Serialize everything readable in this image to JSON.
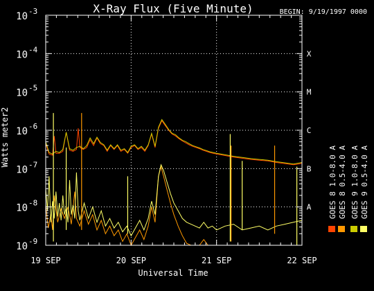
{
  "chart_data": {
    "type": "line",
    "title": "X-Ray Flux (Five Minute)",
    "begin_label": "BEGIN: 9/19/1997 0000",
    "xlabel": "Universal Time",
    "ylabel": "Watts meter2",
    "y_scale": "log",
    "ylim_exponent": [
      -9,
      -3
    ],
    "y_ticks": [
      {
        "base": "10",
        "exp": "-3"
      },
      {
        "base": "10",
        "exp": "-4"
      },
      {
        "base": "10",
        "exp": "-5"
      },
      {
        "base": "10",
        "exp": "-6"
      },
      {
        "base": "10",
        "exp": "-7"
      },
      {
        "base": "10",
        "exp": "-8"
      },
      {
        "base": "10",
        "exp": "-9"
      }
    ],
    "flare_classes": [
      {
        "label": "X",
        "exp": -4
      },
      {
        "label": "M",
        "exp": -5
      },
      {
        "label": "C",
        "exp": -6
      },
      {
        "label": "B",
        "exp": -7
      },
      {
        "label": "A",
        "exp": -8
      }
    ],
    "x_days": [
      0,
      1,
      2,
      3
    ],
    "x_tick_labels": [
      "19 SEP",
      "20 SEP",
      "21 SEP",
      "22 SEP"
    ],
    "grid": true,
    "legend": [
      {
        "label": "GOES 8 1.0-8.0 A",
        "color": "#ff4400"
      },
      {
        "label": "GOES 8 0.5-4.0 A",
        "color": "#ff9900"
      },
      {
        "label": "GOES 9 1.0-8.0 A",
        "color": "#cccc00"
      },
      {
        "label": "GOES 9 0.5-4.0 A",
        "color": "#ffff66"
      }
    ],
    "series": [
      {
        "color": "#ff4400",
        "x": [
          0.0,
          0.04,
          0.08,
          0.1,
          0.12,
          0.16,
          0.2,
          0.24,
          0.28,
          0.32,
          0.36,
          0.38,
          0.4,
          0.44,
          0.48,
          0.52,
          0.56,
          0.6,
          0.64,
          0.68,
          0.72,
          0.76,
          0.8,
          0.84,
          0.88,
          0.92,
          0.96,
          1.0,
          1.04,
          1.08,
          1.12,
          1.16,
          1.2,
          1.24,
          1.28,
          1.32,
          1.36,
          1.4,
          1.44,
          1.48,
          1.52,
          1.56,
          1.6,
          1.64,
          1.68,
          1.72,
          1.76,
          1.8,
          1.84,
          1.88,
          1.92,
          1.96,
          2.0,
          2.1,
          2.2,
          2.3,
          2.4,
          2.5,
          2.6,
          2.7,
          2.8,
          2.9,
          2.96,
          3.0
        ],
        "y": [
          -6.35,
          -6.62,
          -6.65,
          -6.15,
          -6.6,
          -6.6,
          -6.55,
          -6.05,
          -6.52,
          -6.55,
          -6.5,
          -5.95,
          -6.45,
          -6.5,
          -6.45,
          -6.25,
          -6.4,
          -6.2,
          -6.35,
          -6.4,
          -6.55,
          -6.4,
          -6.5,
          -6.4,
          -6.55,
          -6.5,
          -6.6,
          -6.45,
          -6.4,
          -6.5,
          -6.45,
          -6.55,
          -6.4,
          -6.1,
          -6.45,
          -5.95,
          -5.75,
          -5.88,
          -6.0,
          -6.1,
          -6.15,
          -6.22,
          -6.28,
          -6.33,
          -6.38,
          -6.42,
          -6.45,
          -6.48,
          -6.52,
          -6.55,
          -6.58,
          -6.6,
          -6.62,
          -6.66,
          -6.7,
          -6.73,
          -6.76,
          -6.78,
          -6.8,
          -6.84,
          -6.87,
          -6.9,
          -6.88,
          -6.86
        ]
      },
      {
        "color": "#ff9900",
        "x": [
          0.0,
          0.03,
          0.06,
          0.08,
          0.1,
          0.14,
          0.18,
          0.22,
          0.26,
          0.3,
          0.34,
          0.36,
          0.4,
          0.45,
          0.5,
          0.55,
          0.6,
          0.65,
          0.7,
          0.75,
          0.8,
          0.85,
          0.9,
          0.95,
          1.0,
          1.05,
          1.1,
          1.15,
          1.2,
          1.24,
          1.28,
          1.32,
          1.35,
          1.38,
          1.42,
          1.46,
          1.5,
          1.55,
          1.6,
          1.65,
          1.7,
          1.75,
          1.8,
          1.85,
          1.9,
          1.95,
          2.0,
          2.1,
          2.2,
          2.3,
          2.4,
          2.5,
          2.6,
          2.7,
          2.8,
          2.9,
          3.0
        ],
        "y": [
          -7.95,
          -8.55,
          -8.2,
          -8.6,
          -7.7,
          -8.4,
          -8.05,
          -8.3,
          -8.0,
          -8.45,
          -7.6,
          -8.3,
          -8.5,
          -8.1,
          -8.45,
          -8.2,
          -8.6,
          -8.35,
          -8.7,
          -8.5,
          -8.75,
          -8.6,
          -8.9,
          -8.7,
          -9.0,
          -8.8,
          -8.6,
          -8.85,
          -8.5,
          -8.0,
          -8.4,
          -7.2,
          -6.95,
          -7.2,
          -7.55,
          -7.9,
          -8.2,
          -8.5,
          -8.75,
          -8.95,
          -9.0,
          -9.0,
          -9.0,
          -8.85,
          -9.0,
          -9.0,
          -9.0,
          -9.0,
          -9.0,
          -9.0,
          -9.0,
          -9.0,
          -9.0,
          -9.0,
          -9.0,
          -9.0,
          -9.0
        ]
      },
      {
        "color": "#cccc00",
        "x": [
          0.0,
          0.04,
          0.08,
          0.12,
          0.16,
          0.2,
          0.24,
          0.28,
          0.32,
          0.36,
          0.4,
          0.44,
          0.48,
          0.52,
          0.56,
          0.6,
          0.64,
          0.68,
          0.72,
          0.76,
          0.8,
          0.84,
          0.88,
          0.92,
          0.96,
          1.0,
          1.04,
          1.08,
          1.12,
          1.16,
          1.2,
          1.24,
          1.28,
          1.32,
          1.36,
          1.4,
          1.44,
          1.48,
          1.52,
          1.56,
          1.6,
          1.64,
          1.68,
          1.72,
          1.76,
          1.8,
          1.84,
          1.88,
          1.92,
          1.96,
          2.0,
          2.1,
          2.2,
          2.3,
          2.4,
          2.5,
          2.6,
          2.7,
          2.8,
          2.9,
          3.0
        ],
        "y": [
          -6.3,
          -6.58,
          -6.62,
          -6.55,
          -6.58,
          -6.5,
          -6.05,
          -6.48,
          -6.52,
          -6.45,
          -6.42,
          -6.48,
          -6.4,
          -6.2,
          -6.35,
          -6.18,
          -6.32,
          -6.38,
          -6.52,
          -6.38,
          -6.48,
          -6.38,
          -6.52,
          -6.48,
          -6.58,
          -6.42,
          -6.38,
          -6.48,
          -6.42,
          -6.52,
          -6.38,
          -6.08,
          -6.42,
          -5.92,
          -5.72,
          -5.85,
          -5.98,
          -6.08,
          -6.12,
          -6.2,
          -6.26,
          -6.3,
          -6.35,
          -6.4,
          -6.43,
          -6.46,
          -6.5,
          -6.53,
          -6.56,
          -6.58,
          -6.6,
          -6.64,
          -6.68,
          -6.71,
          -6.74,
          -6.76,
          -6.78,
          -6.82,
          -6.85,
          -6.88,
          -6.84
        ]
      },
      {
        "color": "#ffff66",
        "x": [
          0.0,
          0.02,
          0.04,
          0.06,
          0.08,
          0.1,
          0.12,
          0.14,
          0.16,
          0.18,
          0.2,
          0.22,
          0.24,
          0.26,
          0.28,
          0.3,
          0.32,
          0.34,
          0.36,
          0.38,
          0.4,
          0.45,
          0.5,
          0.55,
          0.6,
          0.65,
          0.7,
          0.75,
          0.8,
          0.85,
          0.9,
          0.95,
          1.0,
          1.05,
          1.1,
          1.15,
          1.2,
          1.24,
          1.28,
          1.32,
          1.35,
          1.38,
          1.42,
          1.46,
          1.5,
          1.55,
          1.6,
          1.65,
          1.7,
          1.75,
          1.8,
          1.85,
          1.9,
          1.95,
          2.0,
          2.1,
          2.2,
          2.3,
          2.4,
          2.5,
          2.6,
          2.7,
          2.8,
          2.9,
          3.0
        ],
        "y": [
          -7.5,
          -8.1,
          -7.2,
          -8.4,
          -7.85,
          -8.3,
          -7.6,
          -8.25,
          -7.9,
          -8.35,
          -7.7,
          -8.2,
          -8.0,
          -8.4,
          -7.3,
          -8.2,
          -7.95,
          -8.3,
          -7.1,
          -8.1,
          -8.35,
          -7.9,
          -8.3,
          -8.0,
          -8.4,
          -8.1,
          -8.5,
          -8.3,
          -8.55,
          -8.4,
          -8.65,
          -8.5,
          -8.75,
          -8.55,
          -8.35,
          -8.6,
          -8.3,
          -7.85,
          -8.2,
          -7.2,
          -6.9,
          -7.05,
          -7.35,
          -7.65,
          -7.9,
          -8.1,
          -8.3,
          -8.4,
          -8.45,
          -8.5,
          -8.55,
          -8.4,
          -8.55,
          -8.5,
          -8.6,
          -8.5,
          -8.45,
          -8.6,
          -8.55,
          -8.5,
          -8.6,
          -8.5,
          -8.45,
          -8.4,
          -8.35
        ]
      }
    ],
    "spikes": [
      {
        "x": 0.09,
        "y1": -8.9,
        "y2": -5.55,
        "color": "#ffff66"
      },
      {
        "x": 0.24,
        "y1": -8.6,
        "y2": -6.45,
        "color": "#ffff66"
      },
      {
        "x": 0.42,
        "y1": -8.6,
        "y2": -5.55,
        "color": "#ff9900"
      },
      {
        "x": 0.96,
        "y1": -8.7,
        "y2": -7.2,
        "color": "#ffff66"
      },
      {
        "x": 2.16,
        "y1": -8.9,
        "y2": -6.1,
        "color": "#ffff66"
      },
      {
        "x": 2.17,
        "y1": -8.9,
        "y2": -6.4,
        "color": "#ff9900"
      },
      {
        "x": 2.3,
        "y1": -8.6,
        "y2": -6.8,
        "color": "#ffff66"
      },
      {
        "x": 2.68,
        "y1": -8.7,
        "y2": -6.4,
        "color": "#ff9900"
      },
      {
        "x": 2.94,
        "y1": -9.0,
        "y2": -6.95,
        "color": "#ffff66"
      }
    ]
  }
}
